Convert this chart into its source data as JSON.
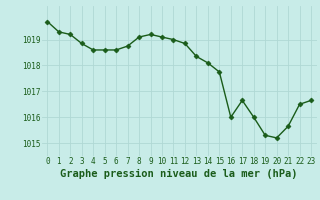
{
  "x": [
    0,
    1,
    2,
    3,
    4,
    5,
    6,
    7,
    8,
    9,
    10,
    11,
    12,
    13,
    14,
    15,
    16,
    17,
    18,
    19,
    20,
    21,
    22,
    23
  ],
  "y": [
    1019.7,
    1019.3,
    1019.2,
    1018.85,
    1018.6,
    1018.6,
    1018.6,
    1018.75,
    1019.1,
    1019.2,
    1019.1,
    1019.0,
    1018.85,
    1018.35,
    1018.1,
    1017.75,
    1016.0,
    1016.65,
    1016.0,
    1015.3,
    1015.2,
    1015.65,
    1016.5,
    1016.65
  ],
  "ylim": [
    1014.5,
    1020.3
  ],
  "yticks": [
    1015,
    1016,
    1017,
    1018,
    1019
  ],
  "xticks": [
    0,
    1,
    2,
    3,
    4,
    5,
    6,
    7,
    8,
    9,
    10,
    11,
    12,
    13,
    14,
    15,
    16,
    17,
    18,
    19,
    20,
    21,
    22,
    23
  ],
  "line_color": "#1a5c1a",
  "marker_color": "#1a5c1a",
  "bg_color": "#c8ece8",
  "grid_color": "#b0d8d4",
  "xlabel": "Graphe pression niveau de la mer (hPa)",
  "xlabel_color": "#1a5c1a",
  "tick_color": "#1a5c1a",
  "tick_fontsize": 5.5,
  "xlabel_fontsize": 7.5,
  "marker_size": 2.5,
  "line_width": 1.0
}
